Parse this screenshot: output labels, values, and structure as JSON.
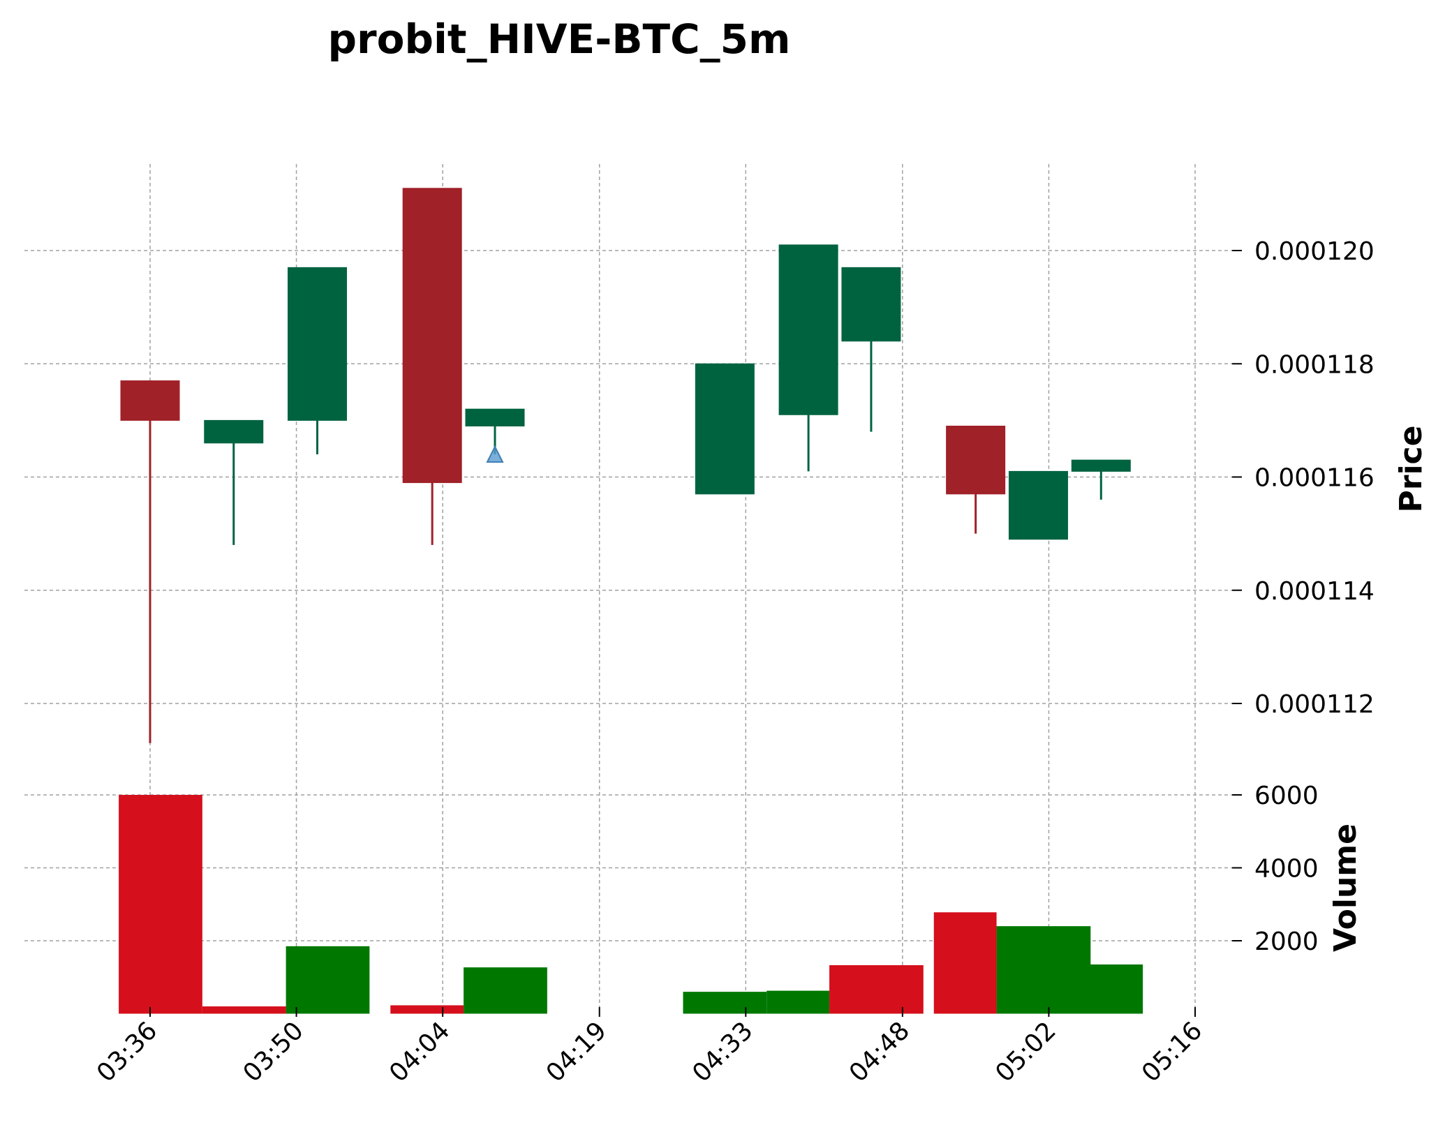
{
  "chart_data": {
    "type": "candlestick",
    "title": "probit_HIVE-BTC_5m",
    "x_tick_labels": [
      "03:36",
      "03:50",
      "04:04",
      "04:19",
      "04:33",
      "04:48",
      "05:02",
      "05:16"
    ],
    "x_tick_minutes": [
      216,
      230,
      244,
      259,
      273,
      288,
      302,
      316
    ],
    "price_axis": {
      "label": "Price",
      "ticks": [
        0.000112,
        0.000114,
        0.000116,
        0.000118,
        0.00012
      ],
      "tick_labels": [
        "0.000112",
        "0.000114",
        "0.000116",
        "0.000118",
        "0.000120"
      ],
      "ylim": [
        0.0001106,
        0.0001216
      ]
    },
    "volume_axis": {
      "label": "Volume",
      "ticks": [
        2000,
        4000,
        6000
      ],
      "tick_labels": [
        "2000",
        "4000",
        "6000"
      ],
      "ylim": [
        0,
        6000
      ]
    },
    "candles": [
      {
        "time": "03:36",
        "open": 0.0001177,
        "high": 0.0001177,
        "low": 0.0001113,
        "close": 0.000117
      },
      {
        "time": "03:44",
        "open": 0.0001166,
        "high": 0.000117,
        "low": 0.0001148,
        "close": 0.000117
      },
      {
        "time": "03:52",
        "open": 0.000117,
        "high": 0.0001197,
        "low": 0.0001164,
        "close": 0.0001197
      },
      {
        "time": "04:03",
        "open": 0.0001211,
        "high": 0.0001211,
        "low": 0.0001148,
        "close": 0.0001159
      },
      {
        "time": "04:09",
        "open": 0.0001169,
        "high": 0.0001172,
        "low": 0.0001164,
        "close": 0.0001172
      },
      {
        "time": "04:31",
        "open": 0.0001157,
        "high": 0.000118,
        "low": 0.0001157,
        "close": 0.000118
      },
      {
        "time": "04:39",
        "open": 0.0001171,
        "high": 0.0001201,
        "low": 0.0001161,
        "close": 0.0001201
      },
      {
        "time": "04:45",
        "open": 0.0001184,
        "high": 0.0001197,
        "low": 0.0001168,
        "close": 0.0001197
      },
      {
        "time": "04:55",
        "open": 0.0001169,
        "high": 0.0001169,
        "low": 0.000115,
        "close": 0.0001157
      },
      {
        "time": "05:01",
        "open": 0.0001149,
        "high": 0.0001161,
        "low": 0.0001149,
        "close": 0.0001161
      },
      {
        "time": "05:07",
        "open": 0.0001161,
        "high": 0.0001163,
        "low": 0.0001156,
        "close": 0.0001163
      }
    ],
    "volumes": [
      {
        "start": "03:33",
        "end": "03:41",
        "value": 6000,
        "direction": "down"
      },
      {
        "start": "03:41",
        "end": "03:49",
        "value": 200,
        "direction": "down"
      },
      {
        "start": "03:49",
        "end": "03:57",
        "value": 1850,
        "direction": "up"
      },
      {
        "start": "03:59",
        "end": "04:06",
        "value": 230,
        "direction": "down"
      },
      {
        "start": "04:06",
        "end": "04:14",
        "value": 1270,
        "direction": "up"
      },
      {
        "start": "04:27",
        "end": "04:35",
        "value": 600,
        "direction": "up"
      },
      {
        "start": "04:35",
        "end": "04:41",
        "value": 630,
        "direction": "up"
      },
      {
        "start": "04:41",
        "end": "04:50",
        "value": 1330,
        "direction": "down"
      },
      {
        "start": "04:51",
        "end": "04:57",
        "value": 2780,
        "direction": "down"
      },
      {
        "start": "04:57",
        "end": "05:06",
        "value": 2400,
        "direction": "up"
      },
      {
        "start": "05:02",
        "end": "05:11",
        "value": 1350,
        "direction": "up"
      }
    ],
    "markers": [
      {
        "type": "buy-signal-triangle",
        "time": "04:09",
        "price": 0.0001164
      }
    ],
    "colors": {
      "up": "#006340",
      "down": "#A02128",
      "volume_up": "#007800",
      "volume_down": "#D50F1C",
      "marker": "#5A9BD0",
      "grid": "#a0a0a0"
    },
    "grid": true
  }
}
